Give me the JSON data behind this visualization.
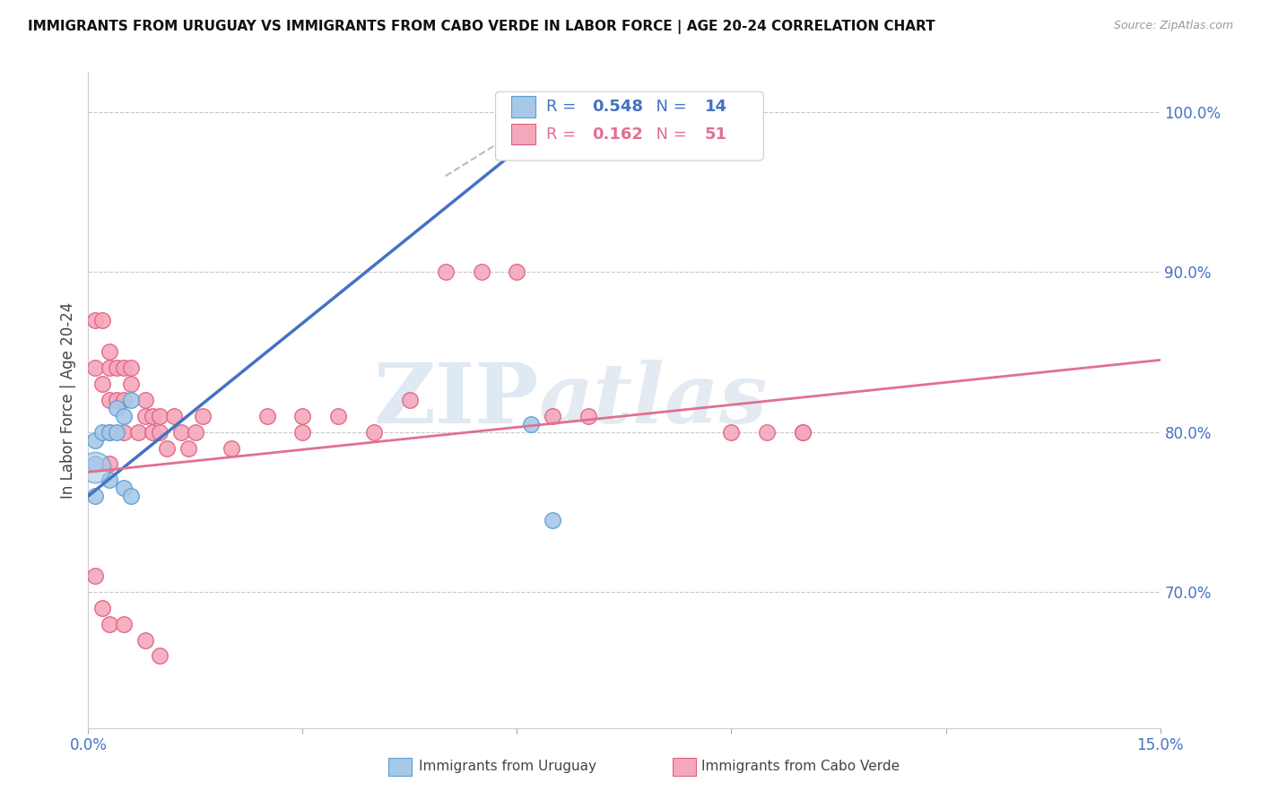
{
  "title": "IMMIGRANTS FROM URUGUAY VS IMMIGRANTS FROM CABO VERDE IN LABOR FORCE | AGE 20-24 CORRELATION CHART",
  "source": "Source: ZipAtlas.com",
  "ylabel": "In Labor Force | Age 20-24",
  "xmin": 0.0,
  "xmax": 0.15,
  "ymin": 0.615,
  "ymax": 1.025,
  "yticks": [
    0.7,
    0.8,
    0.9,
    1.0
  ],
  "ytick_labels": [
    "70.0%",
    "80.0%",
    "90.0%",
    "100.0%"
  ],
  "xticks": [
    0.0,
    0.03,
    0.06,
    0.09,
    0.12,
    0.15
  ],
  "xtick_labels": [
    "0.0%",
    "",
    "",
    "",
    "",
    "15.0%"
  ],
  "uruguay_color": "#a8c8e8",
  "cabo_verde_color": "#f4a8bc",
  "uruguay_edge_color": "#5a9fd4",
  "cabo_verde_edge_color": "#e06080",
  "trend_blue": "#4472c4",
  "trend_pink": "#e07090",
  "legend_R_uruguay": "0.548",
  "legend_N_uruguay": "14",
  "legend_R_cabo_verde": "0.162",
  "legend_N_cabo_verde": "51",
  "watermark_zip": "ZIP",
  "watermark_atlas": "atlas",
  "uruguay_x": [
    0.001,
    0.001,
    0.001,
    0.002,
    0.003,
    0.003,
    0.004,
    0.004,
    0.005,
    0.005,
    0.006,
    0.006,
    0.062,
    0.065
  ],
  "uruguay_y": [
    0.795,
    0.78,
    0.76,
    0.8,
    0.8,
    0.77,
    0.815,
    0.8,
    0.81,
    0.765,
    0.82,
    0.76,
    0.805,
    0.745
  ],
  "cabo_verde_x": [
    0.001,
    0.001,
    0.002,
    0.002,
    0.003,
    0.003,
    0.003,
    0.003,
    0.003,
    0.004,
    0.004,
    0.005,
    0.005,
    0.005,
    0.006,
    0.006,
    0.007,
    0.008,
    0.008,
    0.009,
    0.009,
    0.01,
    0.01,
    0.011,
    0.012,
    0.013,
    0.014,
    0.015,
    0.016,
    0.02,
    0.025,
    0.03,
    0.03,
    0.035,
    0.04,
    0.045,
    0.05,
    0.055,
    0.06,
    0.065,
    0.07,
    0.09,
    0.095,
    0.1,
    0.1,
    0.001,
    0.002,
    0.003,
    0.005,
    0.008,
    0.01
  ],
  "cabo_verde_y": [
    0.87,
    0.84,
    0.87,
    0.83,
    0.85,
    0.84,
    0.82,
    0.8,
    0.78,
    0.84,
    0.82,
    0.84,
    0.82,
    0.8,
    0.84,
    0.83,
    0.8,
    0.82,
    0.81,
    0.81,
    0.8,
    0.81,
    0.8,
    0.79,
    0.81,
    0.8,
    0.79,
    0.8,
    0.81,
    0.79,
    0.81,
    0.8,
    0.81,
    0.81,
    0.8,
    0.82,
    0.9,
    0.9,
    0.9,
    0.81,
    0.81,
    0.8,
    0.8,
    0.8,
    0.8,
    0.71,
    0.69,
    0.68,
    0.68,
    0.67,
    0.66
  ],
  "title_fontsize": 11,
  "axis_label_color": "#4472c4",
  "tick_color": "#4472c4",
  "grid_color": "#c8c8c8",
  "uruguay_trend_x0": 0.0,
  "uruguay_trend_y0": 0.76,
  "uruguay_trend_x1": 0.068,
  "uruguay_trend_y1": 1.005,
  "cabo_trend_x0": 0.0,
  "cabo_trend_y0": 0.775,
  "cabo_trend_x1": 0.15,
  "cabo_trend_y1": 0.845
}
